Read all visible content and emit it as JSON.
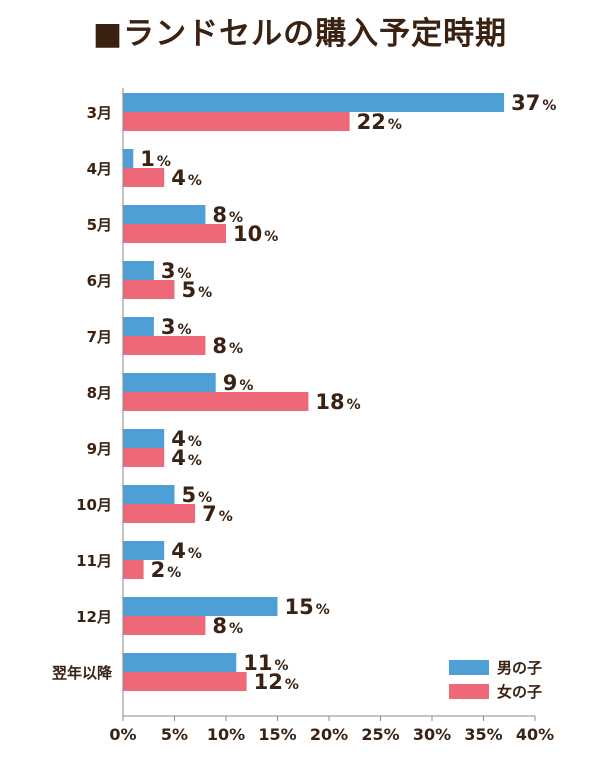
{
  "chart_data": {
    "type": "bar",
    "orientation": "horizontal",
    "title": "■ランドセルの購入予定時期",
    "categories": [
      "3月",
      "4月",
      "5月",
      "6月",
      "7月",
      "8月",
      "9月",
      "10月",
      "11月",
      "12月",
      "翌年以降"
    ],
    "series": [
      {
        "name": "男の子",
        "color": "#4e9fd6",
        "values": [
          37,
          1,
          8,
          3,
          3,
          9,
          4,
          5,
          4,
          15,
          11
        ]
      },
      {
        "name": "女の子",
        "color": "#ee6877",
        "values": [
          22,
          4,
          10,
          5,
          8,
          18,
          4,
          7,
          2,
          8,
          12
        ]
      }
    ],
    "value_suffix": "%",
    "xlim": [
      0,
      40
    ],
    "xticks": [
      0,
      5,
      10,
      15,
      20,
      25,
      30,
      35,
      40
    ],
    "xtick_labels": [
      "0%",
      "5%",
      "10%",
      "15%",
      "20%",
      "25%",
      "30%",
      "35%",
      "40%"
    ],
    "grid": false,
    "legend_position": "bottom-right"
  }
}
